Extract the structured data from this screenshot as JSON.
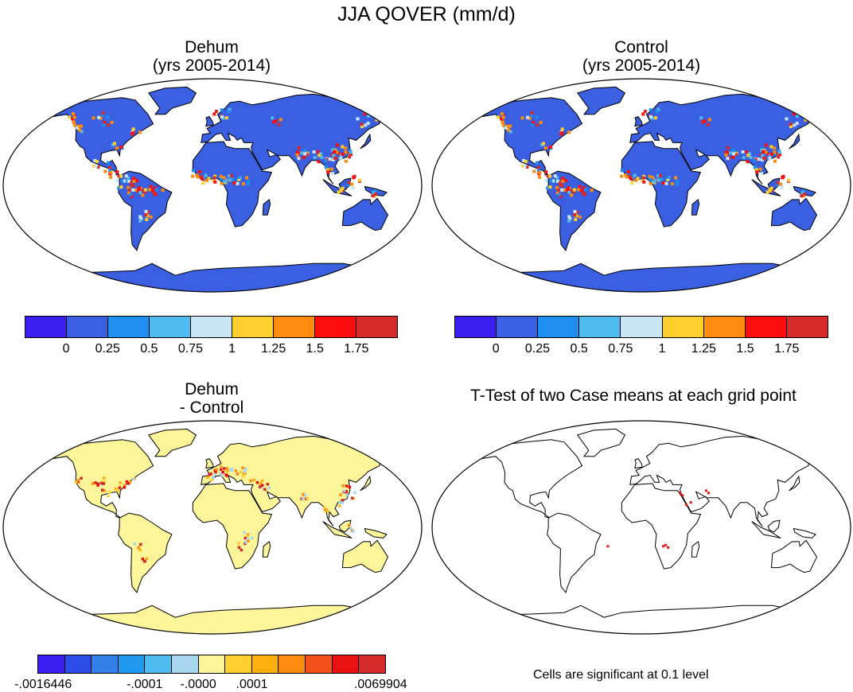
{
  "title": "JJA QOVER (mm/d)",
  "panels": {
    "dehum": {
      "title_line1": "Dehum",
      "title_line2": "(yrs 2005-2014)"
    },
    "control": {
      "title_line1": "Control",
      "title_line2": "(yrs 2005-2014)"
    },
    "diff": {
      "title_line1": "Dehum",
      "title_line2": "- Control"
    },
    "ttest": {
      "title": "T-Test of two Case means at each grid point",
      "note": "Cells are significant at 0.1 level"
    }
  },
  "colorbar_main": {
    "colors": [
      "#3b1ef0",
      "#3a5fe0",
      "#1e8ff0",
      "#4fbcf0",
      "#c8e6f5",
      "#fdd02f",
      "#fd8c0e",
      "#fc0d0d",
      "#d42a2a"
    ],
    "labels": [
      "0",
      "0.25",
      "0.5",
      "0.75",
      "1",
      "1.25",
      "1.5",
      "1.75"
    ]
  },
  "colorbar_diff": {
    "colors": [
      "#3b1ef0",
      "#2b4ce6",
      "#337fe8",
      "#1e9af0",
      "#4fbcf0",
      "#a8d6ee",
      "#fdf59a",
      "#fdd02f",
      "#fdb00e",
      "#fd8c0e",
      "#f0501a",
      "#e81010",
      "#d42a2a"
    ],
    "labels": [
      "-.0016446",
      "-.0001",
      "-.0000",
      ".0001",
      ".0069904"
    ]
  },
  "chart_data": {
    "type": "heatmap",
    "variable": "QOVER",
    "units": "mm/d",
    "season": "JJA",
    "panels": [
      "Dehum (yrs 2005-2014)",
      "Control (yrs 2005-2014)",
      "Dehum - Control",
      "T-Test of two Case means at each grid point"
    ],
    "colorbar_levels_main": [
      0,
      0.25,
      0.5,
      0.75,
      1,
      1.25,
      1.5,
      1.75
    ],
    "colorbar_diff_labels": [
      -0.0016446,
      -0.0001,
      -0.0,
      0.0001,
      0.0069904
    ],
    "significance_level": 0.1
  }
}
